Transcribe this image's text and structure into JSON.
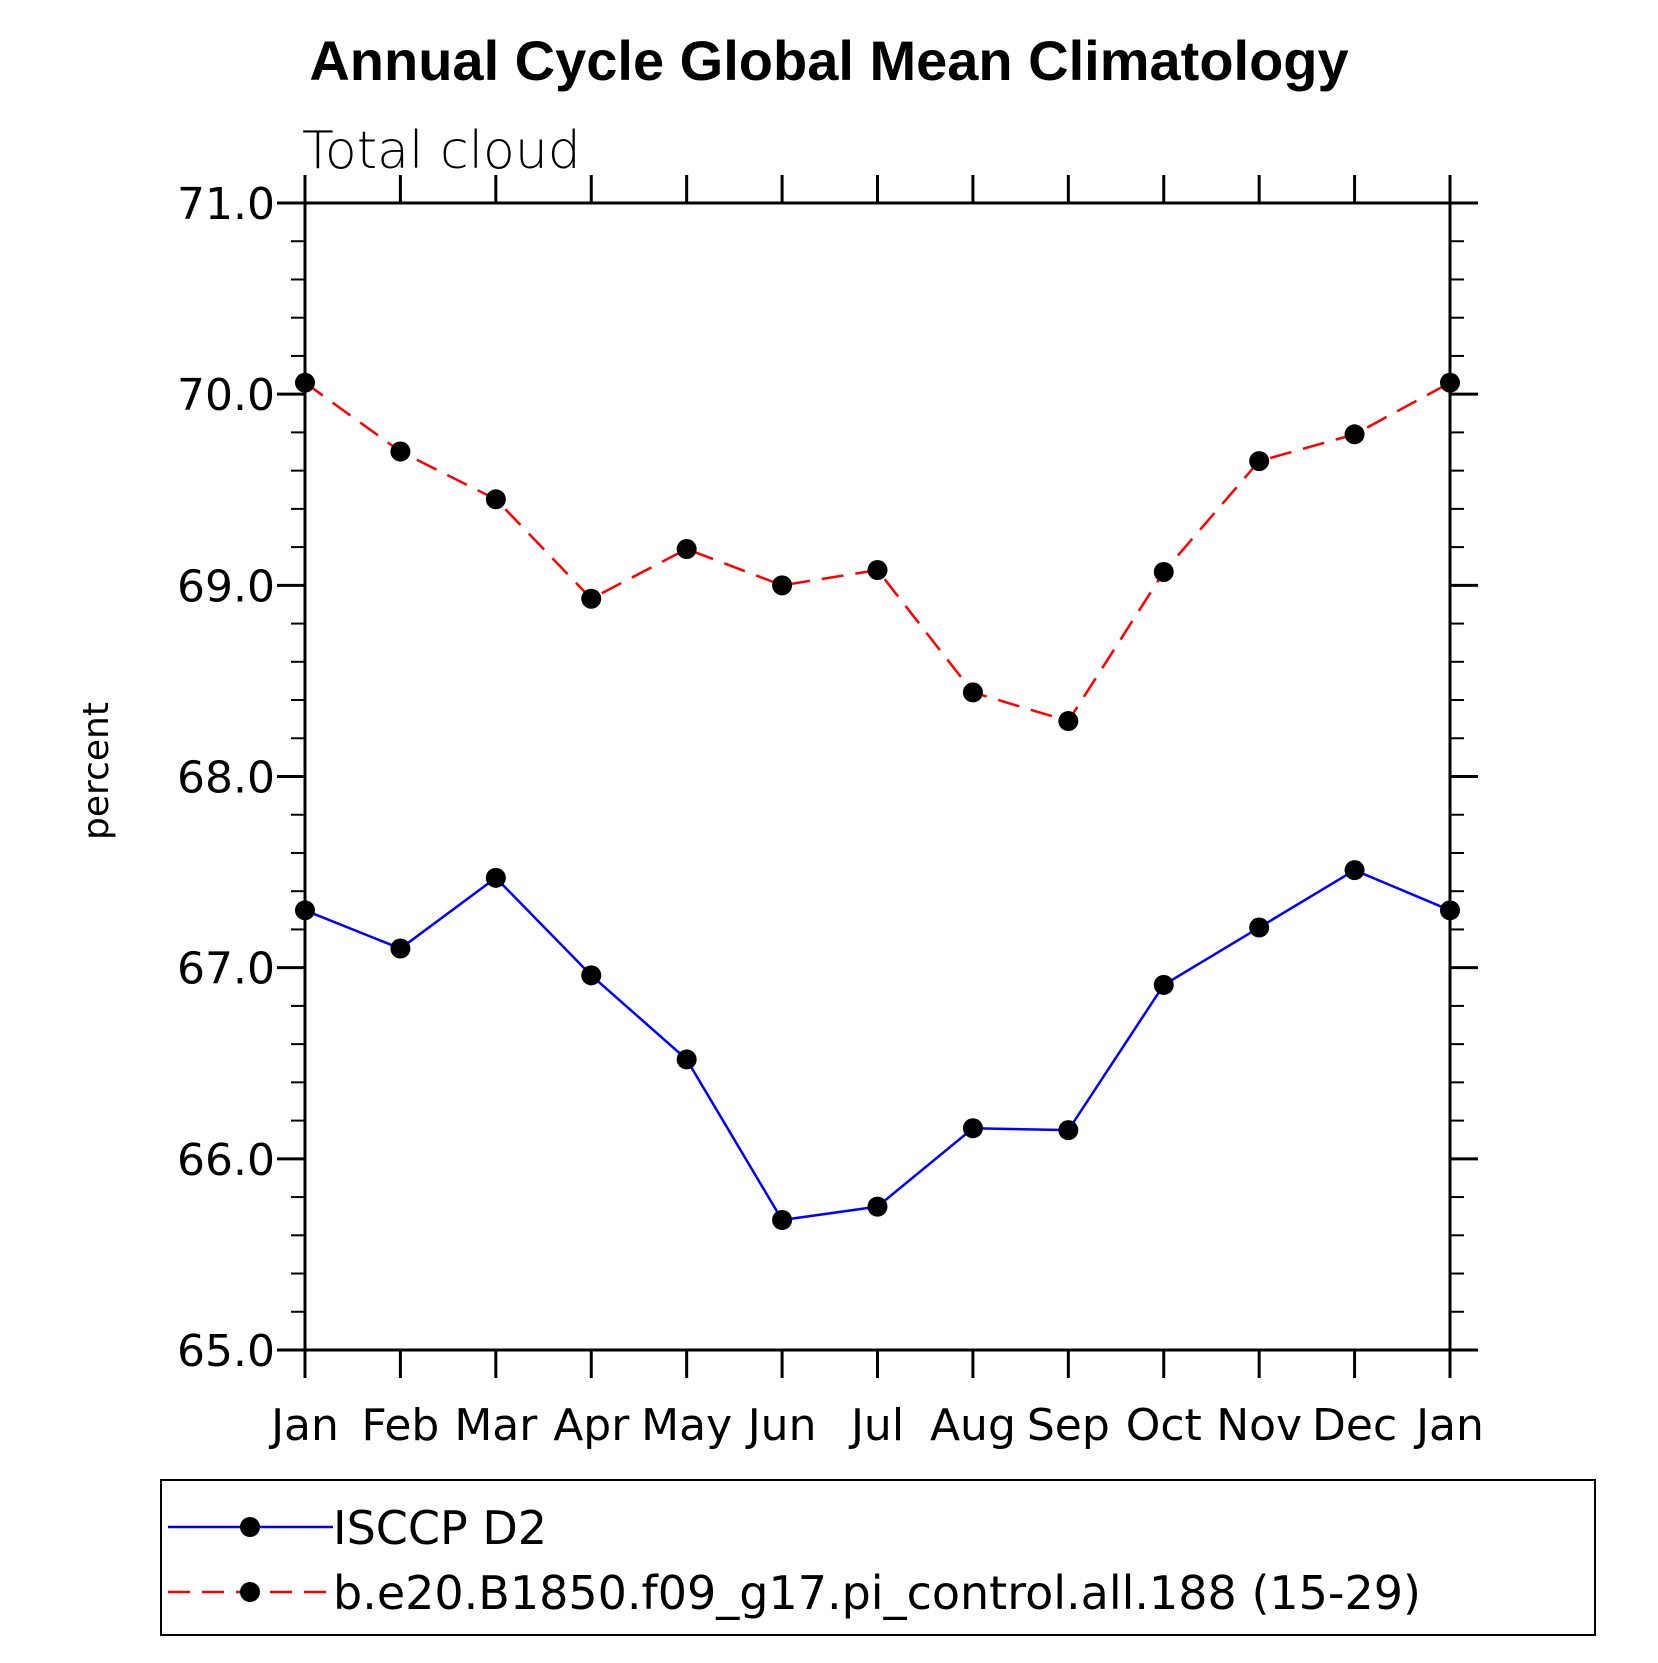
{
  "chart_data": {
    "type": "line",
    "title": "Annual Cycle Global Mean Climatology",
    "subtitle": "Total cloud",
    "xlabel": "",
    "ylabel": "percent",
    "categories": [
      "Jan",
      "Feb",
      "Mar",
      "Apr",
      "May",
      "Jun",
      "Jul",
      "Aug",
      "Sep",
      "Oct",
      "Nov",
      "Dec",
      "Jan"
    ],
    "ylim": [
      65.0,
      71.0
    ],
    "yticks": [
      "65.0",
      "66.0",
      "67.0",
      "68.0",
      "69.0",
      "70.0",
      "71.0"
    ],
    "grid": false,
    "legend_position": "bottom",
    "series": [
      {
        "name": "ISCCP D2",
        "style": "solid",
        "color": "#0000ff",
        "marker_color": "#000000",
        "values": [
          67.3,
          67.1,
          67.47,
          66.96,
          66.52,
          65.68,
          65.75,
          66.16,
          66.15,
          66.91,
          67.21,
          67.51,
          67.3
        ]
      },
      {
        "name": "b.e20.B1850.f09_g17.pi_control.all.188 (15-29)",
        "style": "dashed",
        "color": "#ff0000",
        "marker_color": "#000000",
        "values": [
          70.06,
          69.7,
          69.45,
          68.93,
          69.19,
          69.0,
          69.08,
          68.44,
          68.29,
          69.07,
          69.65,
          69.79,
          70.06
        ]
      }
    ]
  }
}
